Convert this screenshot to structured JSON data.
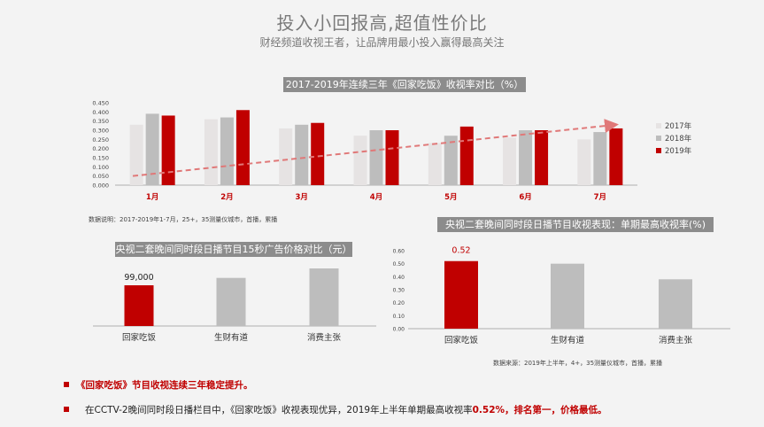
{
  "header": {
    "title": "投入小回报高,超值性价比",
    "subtitle": "财经频道收视王者，让品牌用最小投入赢得最高关注"
  },
  "chart1": {
    "title": "2017-2019年连续三年《回家吃饭》收视率对比（%）",
    "note": "数据说明：2017-2019年1-7月，25+，35测量仪城市，首播，累播",
    "colors": [
      "#e6e3e3",
      "#bdbdbd",
      "#c00000"
    ],
    "trend_color": "#e07878"
  },
  "chart2": {
    "title": "央视二套晚间同时段日播节目15秒广告价格对比（元）",
    "value_label": "99,000",
    "colors": [
      "#c00000",
      "#bdbdbd",
      "#bdbdbd"
    ]
  },
  "chart3": {
    "title": "央视二套晚间同时段日播节目收视表现：单期最高收视率(%)",
    "value_label": "0.52",
    "note": "数据来源：2019年上半年，4+，35测量仪城市，首播，累播",
    "colors": [
      "#c00000",
      "#bdbdbd",
      "#bdbdbd"
    ]
  },
  "bullets": {
    "b1": "《回家吃饭》节目收视连续三年稳定提升。",
    "b2_part1": "在CCTV-2晚间同时段日播栏目中，《回家吃饭》收视表现优异，2019年上半年单期最高收视率",
    "b2_part2": "0.52%，排名第一，价格最低。"
  },
  "chart_data": [
    {
      "type": "bar",
      "title": "2017-2019年连续三年《回家吃饭》收视率对比（%）",
      "categories": [
        "1月",
        "2月",
        "3月",
        "4月",
        "5月",
        "6月",
        "7月"
      ],
      "series": [
        {
          "name": "2017年",
          "values": [
            0.33,
            0.36,
            0.31,
            0.27,
            0.23,
            0.26,
            0.25
          ]
        },
        {
          "name": "2018年",
          "values": [
            0.39,
            0.37,
            0.33,
            0.3,
            0.27,
            0.3,
            0.29
          ]
        },
        {
          "name": "2019年",
          "values": [
            0.38,
            0.41,
            0.34,
            0.3,
            0.32,
            0.3,
            0.31
          ]
        }
      ],
      "yticks": [
        "0.450",
        "0.400",
        "0.350",
        "0.300",
        "0.250",
        "0.200",
        "0.150",
        "0.100",
        "0.050",
        "0.000"
      ],
      "ylim": [
        0,
        0.45
      ],
      "trendline": "rising dashed arrow",
      "legend_position": "right"
    },
    {
      "type": "bar",
      "title": "央视二套晚间同时段日播节目15秒广告价格对比（元）",
      "categories": [
        "回家吃饭",
        "生财有道",
        "消费主张"
      ],
      "values": [
        99000,
        117000,
        140000
      ],
      "data_labels": [
        "99,000",
        "",
        ""
      ]
    },
    {
      "type": "bar",
      "title": "央视二套晚间同时段日播节目收视表现：单期最高收视率(%)",
      "categories": [
        "回家吃饭",
        "生财有道",
        "消费主张"
      ],
      "values": [
        0.52,
        0.5,
        0.38
      ],
      "data_labels": [
        "0.52",
        "",
        ""
      ],
      "yticks": [
        "0.60",
        "0.50",
        "0.40",
        "0.30",
        "0.20",
        "0.10",
        "0.00"
      ],
      "ylim": [
        0,
        0.6
      ]
    }
  ]
}
